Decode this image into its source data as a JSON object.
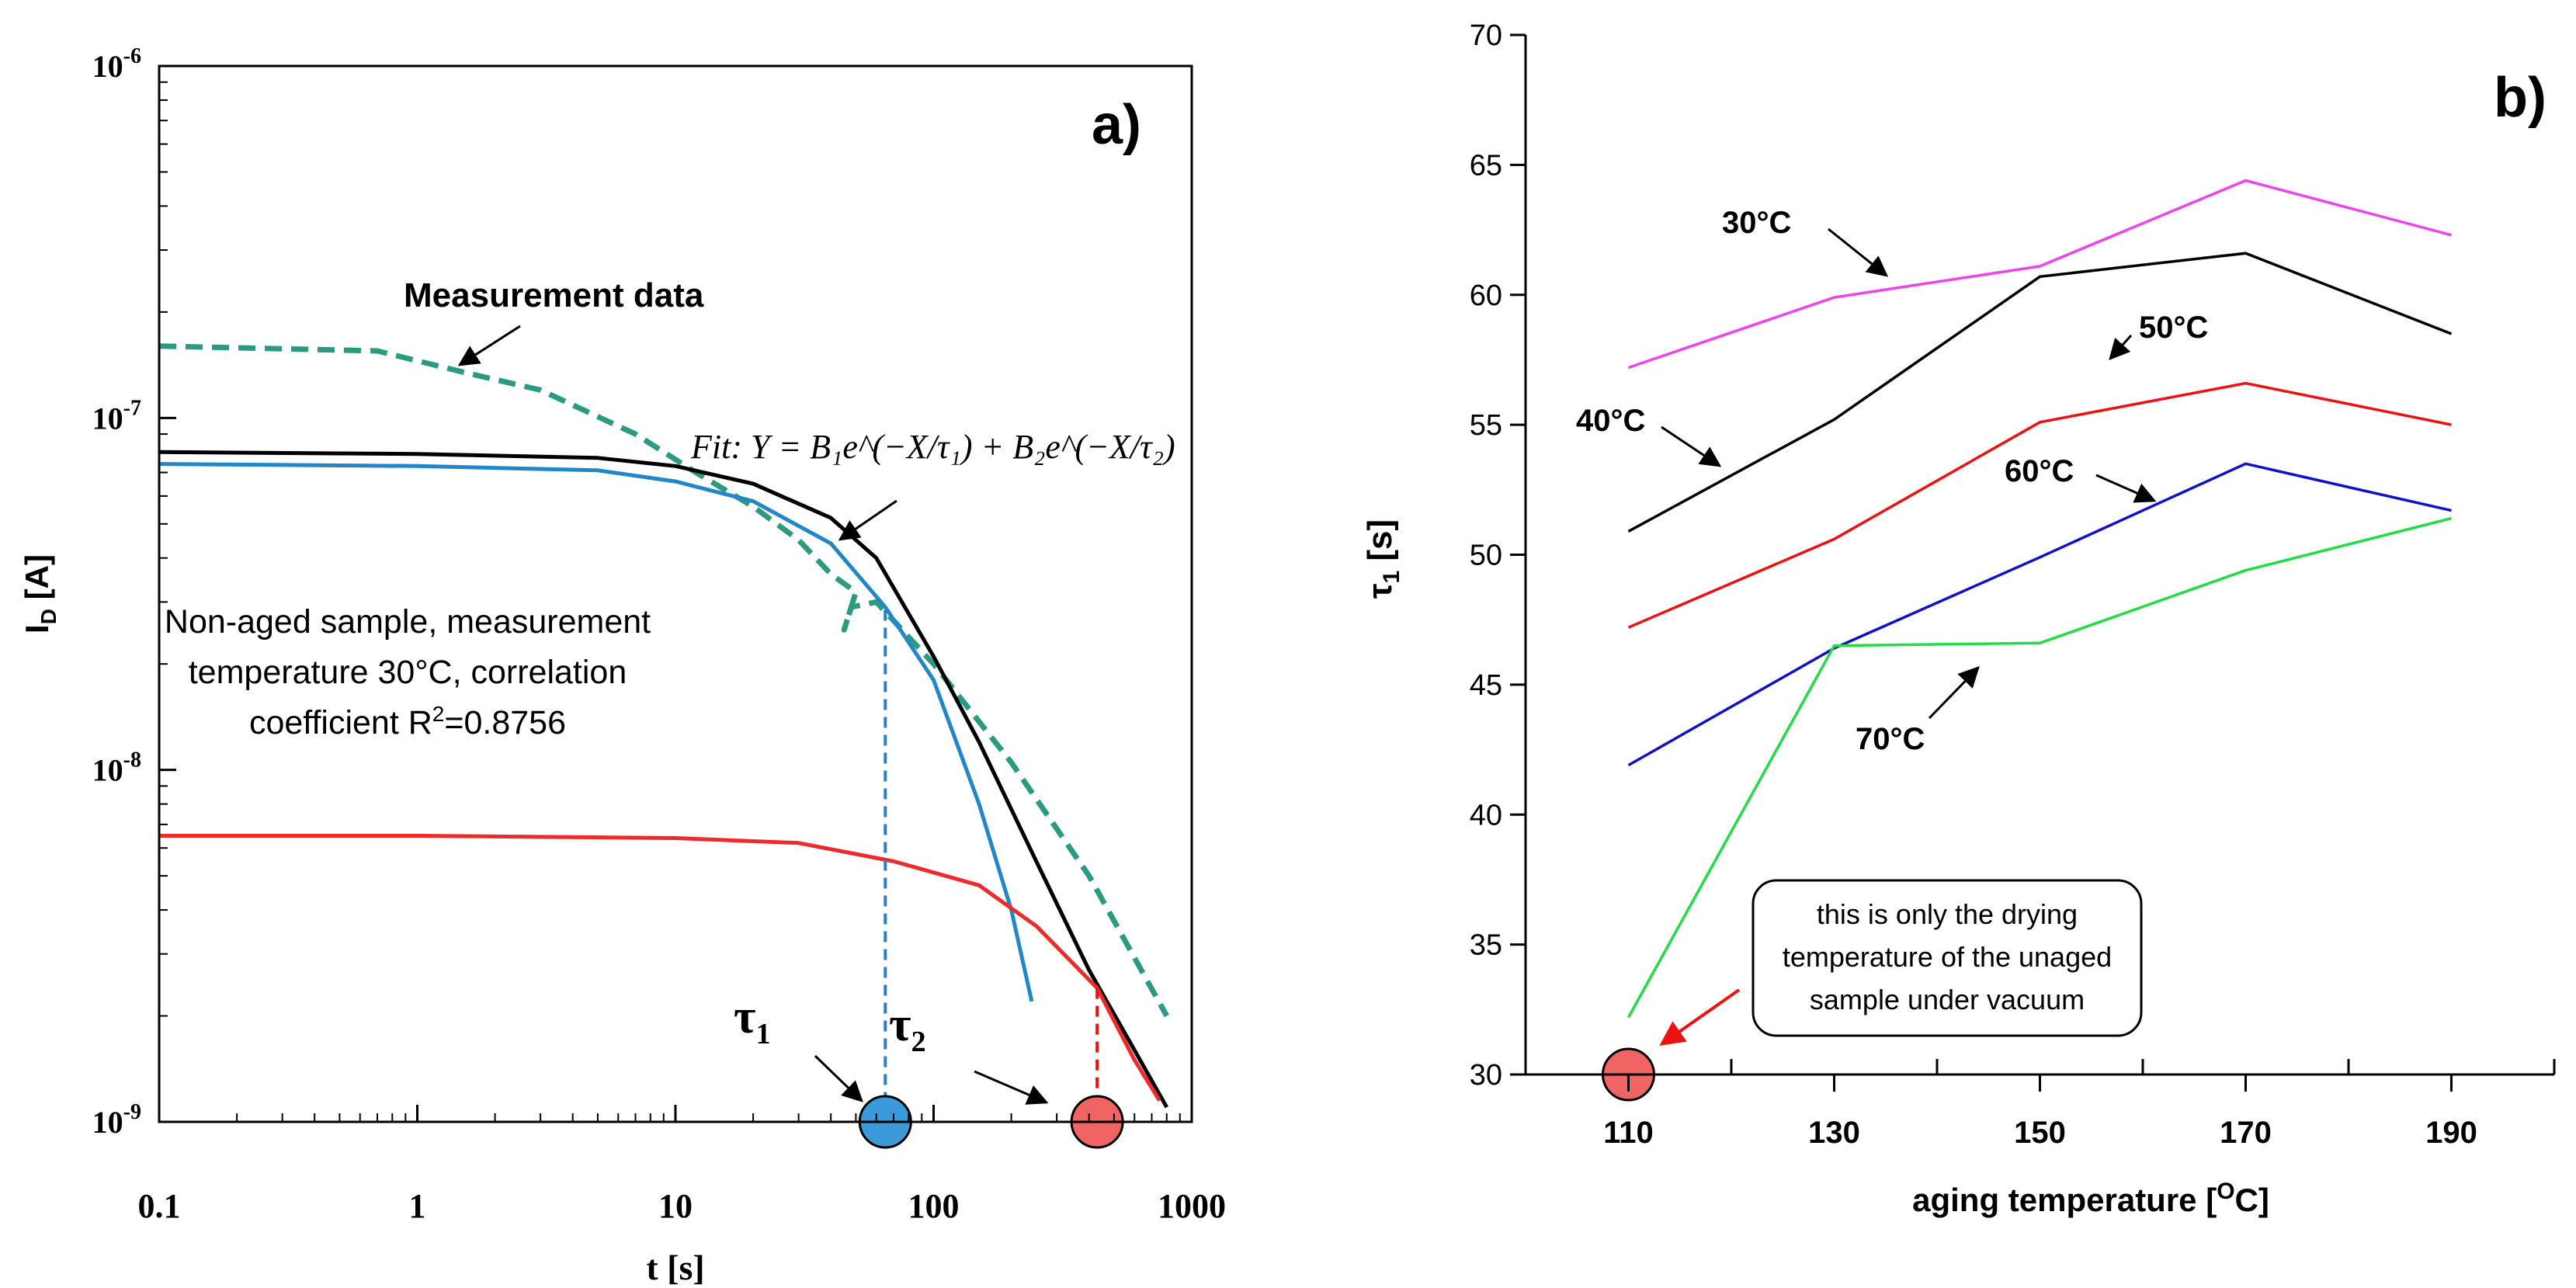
{
  "chart_data": [
    {
      "panel": "a)",
      "type": "line",
      "xscale": "log",
      "yscale": "log",
      "xlim": [
        0.1,
        1000
      ],
      "ylim": [
        1e-09,
        1e-06
      ],
      "xlabel": "t [s]",
      "ylabel_main": "I",
      "ylabel_sub": "D",
      "ylabel_unit": " [A]",
      "x_ticks": [
        0.1,
        1,
        10,
        100,
        1000
      ],
      "x_tick_labels": [
        "0.1",
        "1",
        "10",
        "100",
        "1000"
      ],
      "y_ticks": [
        1e-09,
        1e-08,
        1e-07,
        1e-06
      ],
      "y_tick_base": "10",
      "y_tick_exponents": [
        "-9",
        "-8",
        "-7",
        "-6"
      ],
      "fit_equation": "Fit: Y = B₁e^(−X/τ₁) + B₂e^(−X/τ₂)",
      "annotations": {
        "measurement": "Measurement data",
        "note_line1": "Non-aged sample, measurement",
        "note_line2": "temperature 30°C, correlation",
        "note_line3_pre": "coefficient R",
        "note_line3_sup": "2",
        "note_line3_post": "=0.8756",
        "tau1_main": "τ",
        "tau1_sub": "1",
        "tau2_main": "τ",
        "tau2_sub": "2"
      },
      "tau_markers": [
        {
          "name": "tau1",
          "t": 65,
          "color": "#3b9ad9",
          "curve_value": 2.85e-08
        },
        {
          "name": "tau2",
          "t": 430,
          "color": "#f06464",
          "curve_value": 2.4e-09
        }
      ],
      "series": [
        {
          "name": "Measurement data",
          "color": "#2a9a80",
          "style": "dashed",
          "points": [
            [
              0.1,
              1.6e-07
            ],
            [
              0.7,
              1.55e-07
            ],
            [
              1.5,
              1.35e-07
            ],
            [
              3,
              1.2e-07
            ],
            [
              7,
              9e-08
            ],
            [
              12,
              7e-08
            ],
            [
              20,
              5.6e-08
            ],
            [
              30,
              4.5e-08
            ],
            [
              40,
              3.6e-08
            ],
            [
              50,
              3.2e-08
            ],
            [
              45,
              2.5e-08
            ],
            [
              48,
              2.9e-08
            ],
            [
              60,
              3e-08
            ],
            [
              100,
              2e-08
            ],
            [
              200,
              1.05e-08
            ],
            [
              400,
              5e-09
            ],
            [
              800,
              2e-09
            ]
          ]
        },
        {
          "name": "Fit total",
          "color": "#000000",
          "style": "solid",
          "points": [
            [
              0.1,
              8e-08
            ],
            [
              1,
              7.9e-08
            ],
            [
              5,
              7.7e-08
            ],
            [
              10,
              7.3e-08
            ],
            [
              20,
              6.5e-08
            ],
            [
              40,
              5.2e-08
            ],
            [
              60,
              4e-08
            ],
            [
              100,
              2.1e-08
            ],
            [
              150,
              1.2e-08
            ],
            [
              250,
              5.5e-09
            ],
            [
              400,
              2.7e-09
            ],
            [
              600,
              1.6e-09
            ],
            [
              800,
              1.1e-09
            ]
          ]
        },
        {
          "name": "Component τ1",
          "color": "#2187c9",
          "style": "solid",
          "points": [
            [
              0.1,
              7.4e-08
            ],
            [
              1,
              7.3e-08
            ],
            [
              5,
              7.1e-08
            ],
            [
              10,
              6.6e-08
            ],
            [
              20,
              5.8e-08
            ],
            [
              40,
              4.4e-08
            ],
            [
              65,
              2.9e-08
            ],
            [
              100,
              1.8e-08
            ],
            [
              150,
              8e-09
            ],
            [
              200,
              4e-09
            ],
            [
              240,
              2.2e-09
            ]
          ]
        },
        {
          "name": "Component τ2",
          "color": "#ee2b2b",
          "style": "solid",
          "points": [
            [
              0.1,
              6.5e-09
            ],
            [
              1,
              6.5e-09
            ],
            [
              10,
              6.4e-09
            ],
            [
              30,
              6.2e-09
            ],
            [
              70,
              5.5e-09
            ],
            [
              150,
              4.7e-09
            ],
            [
              250,
              3.6e-09
            ],
            [
              350,
              2.8e-09
            ],
            [
              430,
              2.4e-09
            ],
            [
              600,
              1.5e-09
            ],
            [
              750,
              1.15e-09
            ]
          ]
        }
      ]
    },
    {
      "panel": "b)",
      "type": "line",
      "xlabel": "aging temperature [",
      "xlabel_sup": "O",
      "xlabel_end": "C]",
      "ylabel_main": "τ",
      "ylabel_sub": "1",
      "ylabel_unit": " [s]",
      "xlim": [
        100,
        200
      ],
      "ylim": [
        30,
        70
      ],
      "x_ticks": [
        110,
        130,
        150,
        170,
        190
      ],
      "x_minor_ticks": [
        100,
        120,
        140,
        160,
        180,
        200
      ],
      "y_ticks": [
        30,
        35,
        40,
        45,
        50,
        55,
        60,
        65,
        70
      ],
      "categories": [
        110,
        130,
        150,
        170,
        190
      ],
      "series": [
        {
          "name": "30°C",
          "color": "#ee44ee",
          "values": [
            57.2,
            59.9,
            61.1,
            64.4,
            62.3
          ]
        },
        {
          "name": "40°C",
          "color": "#000000",
          "values": [
            50.9,
            55.2,
            60.7,
            61.6,
            58.5
          ]
        },
        {
          "name": "50°C",
          "color": "#ee1111",
          "values": [
            47.2,
            50.6,
            55.1,
            56.6,
            55.0
          ]
        },
        {
          "name": "60°C",
          "color": "#1111cc",
          "values": [
            41.9,
            46.4,
            49.9,
            53.5,
            51.7
          ]
        },
        {
          "name": "70°C",
          "color": "#22dd44",
          "values": [
            32.2,
            46.5,
            46.6,
            49.4,
            51.4
          ]
        }
      ],
      "marker_point": {
        "x": 110,
        "y": 30,
        "color": "#f06464"
      },
      "callout_lines": [
        "this is only the drying",
        "temperature of the unaged",
        "sample under vacuum"
      ],
      "series_labels": [
        "30°C",
        "40°C",
        "50°C",
        "60°C",
        "70°C"
      ]
    }
  ]
}
